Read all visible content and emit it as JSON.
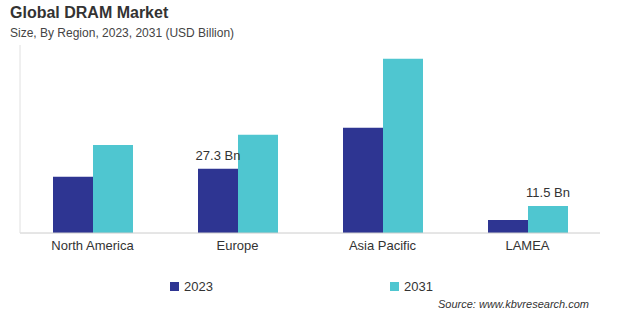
{
  "chart_data": {
    "type": "bar",
    "title": "Global DRAM Market",
    "subtitle": "Size, By Region, 2023, 2031 (USD Billion)",
    "categories": [
      "North America",
      "Europe",
      "Asia Pacific",
      "LAMEA"
    ],
    "series": [
      {
        "name": "2023",
        "color": "#2e3592",
        "values": [
          23.9,
          27.3,
          44.8,
          5.5
        ],
        "value_labels": [
          null,
          "27.3 Bn",
          null,
          null
        ]
      },
      {
        "name": "2031",
        "color": "#4fc6d0",
        "values": [
          37.5,
          41.8,
          74.2,
          11.5
        ],
        "value_labels": [
          null,
          null,
          null,
          "11.5 Bn"
        ]
      }
    ],
    "ylim": [
      0,
      80
    ],
    "tick_labels": "x",
    "grid": false,
    "data_labels": true,
    "legend": "bottom",
    "annotations": [
      "Source: www.kbvresearch.com"
    ]
  }
}
